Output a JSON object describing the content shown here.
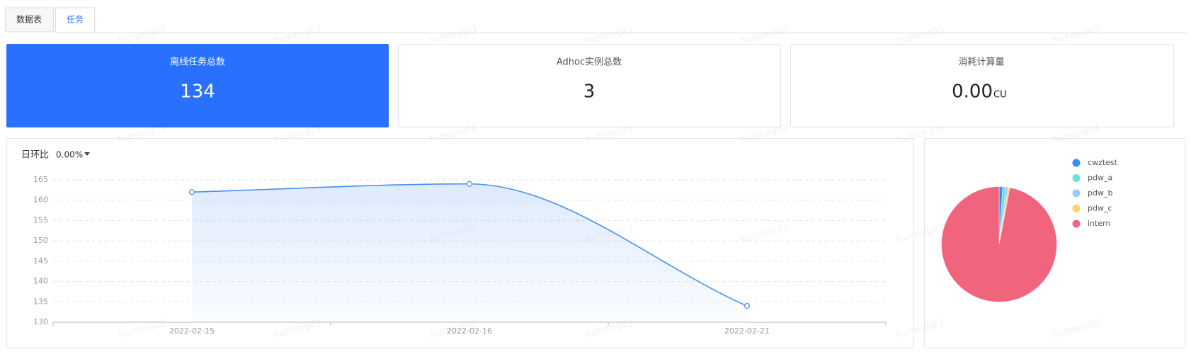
{
  "tabs": [
    "数据表",
    "任务"
  ],
  "cards": [
    {
      "title": "离线任务总数",
      "value": 134
    },
    {
      "title": "Adhoc实例总数",
      "value": 3
    },
    {
      "title": "消耗计算量",
      "value": "0.00",
      "unit": "CU"
    }
  ],
  "watermark": "fuzheng03",
  "chart_data": [
    {
      "type": "line",
      "label": "日环比",
      "change": "0.00%",
      "categories": [
        "2022-02-15",
        "2022-02-16",
        "2022-02-21"
      ],
      "values": [
        162,
        164,
        134
      ],
      "color": "#4a8ff0",
      "ylim": [
        130,
        165
      ],
      "yticks": [
        130,
        135,
        140,
        145,
        150,
        155,
        160,
        165
      ],
      "grid": true
    },
    {
      "type": "pie",
      "categories": [
        "cwztest",
        "pdw_a",
        "pdw_b",
        "pdw_c",
        "intern"
      ],
      "values": [
        1,
        1,
        0.5,
        0.5,
        97
      ],
      "colors": [
        "#3d8cf5",
        "#6fe0e0",
        "#9cc9f5",
        "#fdd36a",
        "#f0657d"
      ],
      "legend": "top-right"
    }
  ]
}
